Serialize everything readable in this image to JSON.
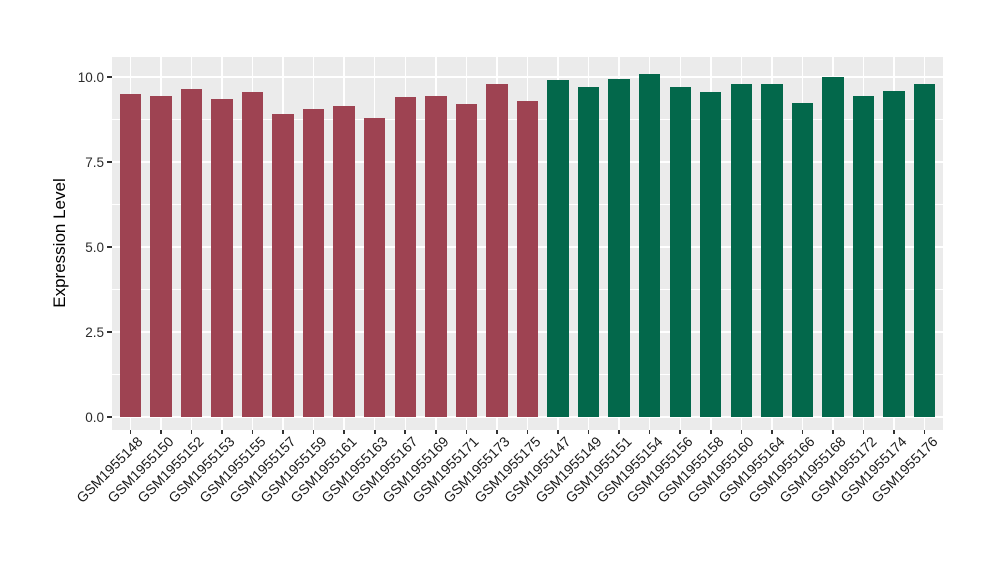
{
  "chart_data": {
    "type": "bar",
    "title": "",
    "xlabel": "",
    "ylabel": "Expression Level",
    "ylim": [
      -0.38,
      10.59
    ],
    "ytick_labels": [
      "0.0",
      "2.5",
      "5.0",
      "7.5",
      "10.0"
    ],
    "ytick_values": [
      0,
      2.5,
      5,
      7.5,
      10
    ],
    "minor_ytick_values": [
      1.25,
      3.75,
      6.25,
      8.75
    ],
    "grid": "major and minor white gridlines on grey panel, vertical line per category",
    "legend_position": "none",
    "panel_background": "#EBEBEB",
    "grid_color": "#FFFFFF",
    "colors": {
      "maroon": "#9E4352",
      "green": "#03684B"
    },
    "bars": [
      {
        "label": "GSM1955148",
        "value": 9.5,
        "group": "maroon"
      },
      {
        "label": "GSM1955150",
        "value": 9.45,
        "group": "maroon"
      },
      {
        "label": "GSM1955152",
        "value": 9.65,
        "group": "maroon"
      },
      {
        "label": "GSM1955153",
        "value": 9.35,
        "group": "maroon"
      },
      {
        "label": "GSM1955155",
        "value": 9.55,
        "group": "maroon"
      },
      {
        "label": "GSM1955157",
        "value": 8.9,
        "group": "maroon"
      },
      {
        "label": "GSM1955159",
        "value": 9.05,
        "group": "maroon"
      },
      {
        "label": "GSM1955161",
        "value": 9.15,
        "group": "maroon"
      },
      {
        "label": "GSM1955163",
        "value": 8.8,
        "group": "maroon"
      },
      {
        "label": "GSM1955167",
        "value": 9.4,
        "group": "maroon"
      },
      {
        "label": "GSM1955169",
        "value": 9.45,
        "group": "maroon"
      },
      {
        "label": "GSM1955171",
        "value": 9.2,
        "group": "maroon"
      },
      {
        "label": "GSM1955173",
        "value": 9.8,
        "group": "maroon"
      },
      {
        "label": "GSM1955175",
        "value": 9.3,
        "group": "maroon"
      },
      {
        "label": "GSM1955147",
        "value": 9.9,
        "group": "green"
      },
      {
        "label": "GSM1955149",
        "value": 9.7,
        "group": "green"
      },
      {
        "label": "GSM1955151",
        "value": 9.95,
        "group": "green"
      },
      {
        "label": "GSM1955154",
        "value": 10.1,
        "group": "green"
      },
      {
        "label": "GSM1955156",
        "value": 9.7,
        "group": "green"
      },
      {
        "label": "GSM1955158",
        "value": 9.55,
        "group": "green"
      },
      {
        "label": "GSM1955160",
        "value": 9.8,
        "group": "green"
      },
      {
        "label": "GSM1955164",
        "value": 9.8,
        "group": "green"
      },
      {
        "label": "GSM1955166",
        "value": 9.25,
        "group": "green"
      },
      {
        "label": "GSM1955168",
        "value": 10.0,
        "group": "green"
      },
      {
        "label": "GSM1955172",
        "value": 9.45,
        "group": "green"
      },
      {
        "label": "GSM1955174",
        "value": 9.6,
        "group": "green"
      },
      {
        "label": "GSM1955176",
        "value": 9.8,
        "group": "green"
      }
    ]
  }
}
